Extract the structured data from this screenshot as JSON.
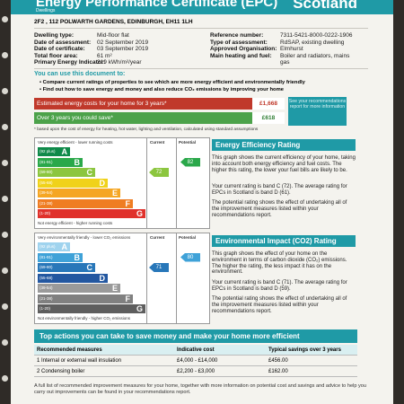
{
  "header": {
    "title": "Energy Performance Certificate (EPC)",
    "country": "Scotland",
    "subtitle": "Dwellings"
  },
  "address": "2F2 , 112 POLWARTH GARDENS, EDINBURGH, EH11 1LH",
  "details_left": [
    {
      "label": "Dwelling type:",
      "value": "Mid-floor flat"
    },
    {
      "label": "Date of assessment:",
      "value": "02 September 2019"
    },
    {
      "label": "Date of certificate:",
      "value": "03 September 2019"
    },
    {
      "label": "Total floor area:",
      "value": "61 m²"
    },
    {
      "label": "Primary Energy Indicator:",
      "value": "219 kWh/m²/year"
    }
  ],
  "details_right": [
    {
      "label": "Reference number:",
      "value": "7311-5421-8000-0222-1906"
    },
    {
      "label": "Type of assessment:",
      "value": "RdSAP, existing dwelling"
    },
    {
      "label": "Approved Organisation:",
      "value": "Elmhurst"
    },
    {
      "label": "Main heating and fuel:",
      "value": "Boiler and radiators, mains"
    },
    {
      "label": "",
      "value": "gas"
    }
  ],
  "use_doc": {
    "heading": "You can use this document to:",
    "bullets": [
      "Compare current ratings of properties to see which are more energy efficient and environmentally friendly",
      "Find out how to save energy and money and also reduce CO₂ emissions by improving your home"
    ]
  },
  "costs": {
    "estimated_label": "Estimated energy costs for your home for 3 years*",
    "estimated_value": "£1,668",
    "save_label": "Over 3 years you could save*",
    "save_value": "£618",
    "note": "See your recommendations report for more information",
    "footnote": "* based upon the cost of energy for heating, hot water, lighting and ventilation, calculated using standard assumptions"
  },
  "efficiency_chart": {
    "top_caption": "Very energy efficient - lower running costs",
    "bottom_caption": "Not energy efficient - higher running costs",
    "col_current": "Current",
    "col_potential": "Potential",
    "bands": [
      {
        "range": "(92 plus)",
        "grade": "A",
        "color": "#0f8a4a"
      },
      {
        "range": "(81-91)",
        "grade": "B",
        "color": "#2aa84a"
      },
      {
        "range": "(69-80)",
        "grade": "C",
        "color": "#8cc63f"
      },
      {
        "range": "(55-68)",
        "grade": "D",
        "color": "#f0d21a"
      },
      {
        "range": "(39-54)",
        "grade": "E",
        "color": "#f5a623"
      },
      {
        "range": "(21-38)",
        "grade": "F",
        "color": "#ef7d22"
      },
      {
        "range": "(1-20)",
        "grade": "G",
        "color": "#e0312b"
      }
    ],
    "current": 72,
    "potential": 82,
    "current_band_index": 2,
    "potential_band_index": 1
  },
  "environmental_chart": {
    "top_caption": "Very environmentally friendly - lower CO₂ emissions",
    "bottom_caption": "Not environmentally friendly - higher CO₂ emissions",
    "col_current": "Current",
    "col_potential": "Potential",
    "bands": [
      {
        "range": "(92 plus)",
        "grade": "A",
        "color": "#9fd3ee"
      },
      {
        "range": "(81-91)",
        "grade": "B",
        "color": "#3fa2d8"
      },
      {
        "range": "(69-80)",
        "grade": "C",
        "color": "#2877b9"
      },
      {
        "range": "(55-68)",
        "grade": "D",
        "color": "#2357a0"
      },
      {
        "range": "(39-54)",
        "grade": "E",
        "color": "#9a9a9a"
      },
      {
        "range": "(21-38)",
        "grade": "F",
        "color": "#808080"
      },
      {
        "range": "(1-20)",
        "grade": "G",
        "color": "#5e5e5e"
      }
    ],
    "current": 71,
    "potential": 80,
    "current_band_index": 2,
    "potential_band_index": 1
  },
  "efficiency_text": {
    "title": "Energy Efficiency Rating",
    "p1": "This graph shows the current efficiency of your home, taking into account both energy efficiency and fuel costs. The higher this rating, the lower your fuel bills are likely to be.",
    "p2": "Your current rating is band C (72). The average rating for EPCs in Scotland is band D (61).",
    "p3": "The potential rating shows the effect of undertaking all of the improvement measures listed within your recommendations report."
  },
  "environment_text": {
    "title": "Environmental Impact (CO2) Rating",
    "p1": "This graph shows the effect of your home on the environment in terms of carbon dioxide (CO₂) emissions. The higher the rating, the less impact it has on the environment.",
    "p2": "Your current rating is band C (71). The average rating for EPCs in Scotland is band D (59).",
    "p3": "The potential rating shows the effect of undertaking all of the improvement measures listed within your recommendations report."
  },
  "actions": {
    "title": "Top actions you can take to save money and make your home more efficient",
    "headers": [
      "Recommended measures",
      "Indicative cost",
      "Typical savings over 3 years"
    ],
    "rows": [
      [
        "1  Internal or external wall insulation",
        "£4,000 - £14,000",
        "£456.00"
      ],
      [
        "2  Condensing boiler",
        "£2,200 - £3,000",
        "£162.00"
      ]
    ],
    "footer": "A full list of recommended improvement measures for your home, together with more information on potential cost and savings and advice to help you carry out improvements can be found in your recommendations report."
  }
}
